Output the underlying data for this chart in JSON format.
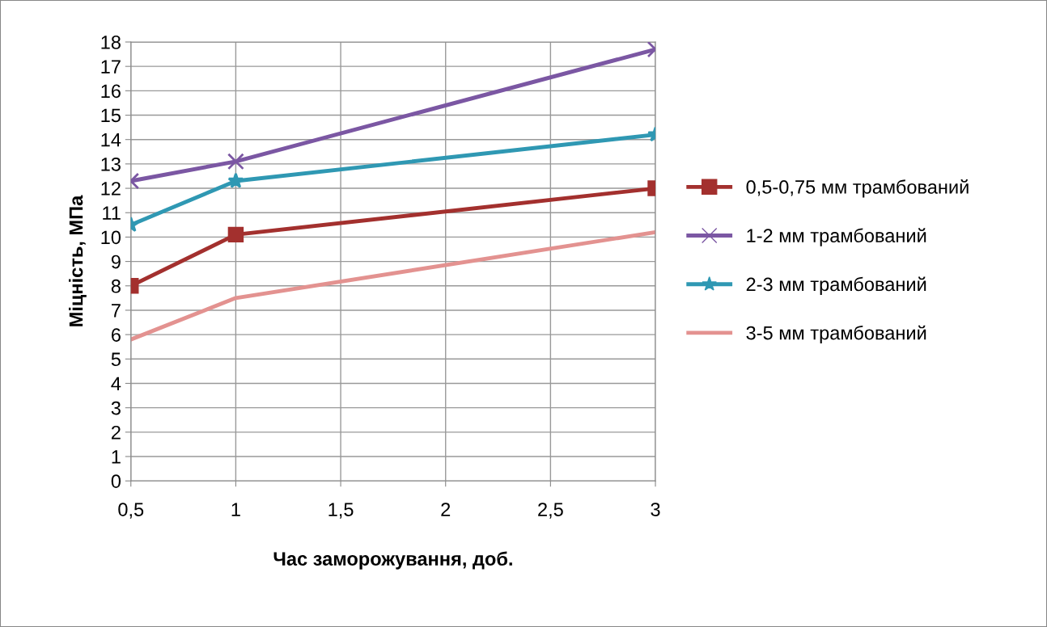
{
  "chart_data": {
    "type": "line",
    "xlabel": "Час заморожування, доб.",
    "ylabel": "Міцність, МПа",
    "x": [
      0.5,
      1,
      3
    ],
    "series": [
      {
        "name": "0,5-0,75 мм трамбований",
        "color": "#a3302e",
        "marker": "square",
        "values": [
          8.0,
          10.1,
          12.0
        ]
      },
      {
        "name": "1-2 мм трамбований",
        "color": "#7b57a3",
        "marker": "cross",
        "values": [
          12.3,
          13.1,
          17.7
        ]
      },
      {
        "name": "2-3 мм трамбований",
        "color": "#2f98b3",
        "marker": "star",
        "values": [
          10.5,
          12.3,
          14.2
        ]
      },
      {
        "name": "3-5 мм трамбований",
        "color": "#e39290",
        "marker": "none",
        "values": [
          5.8,
          7.5,
          10.2
        ]
      }
    ],
    "xlim": [
      0.5,
      3
    ],
    "xticks": [
      {
        "value": 0.5,
        "label": "0,5"
      },
      1,
      {
        "value": 1.5,
        "label": "1,5"
      },
      2,
      {
        "value": 2.5,
        "label": "2,5"
      },
      3
    ],
    "ylim": [
      0,
      18
    ],
    "yticks": [
      0,
      1,
      2,
      3,
      4,
      5,
      6,
      7,
      8,
      9,
      10,
      11,
      12,
      13,
      14,
      15,
      16,
      17,
      18
    ],
    "grid": true,
    "legend": "right",
    "line_style": "solid"
  }
}
